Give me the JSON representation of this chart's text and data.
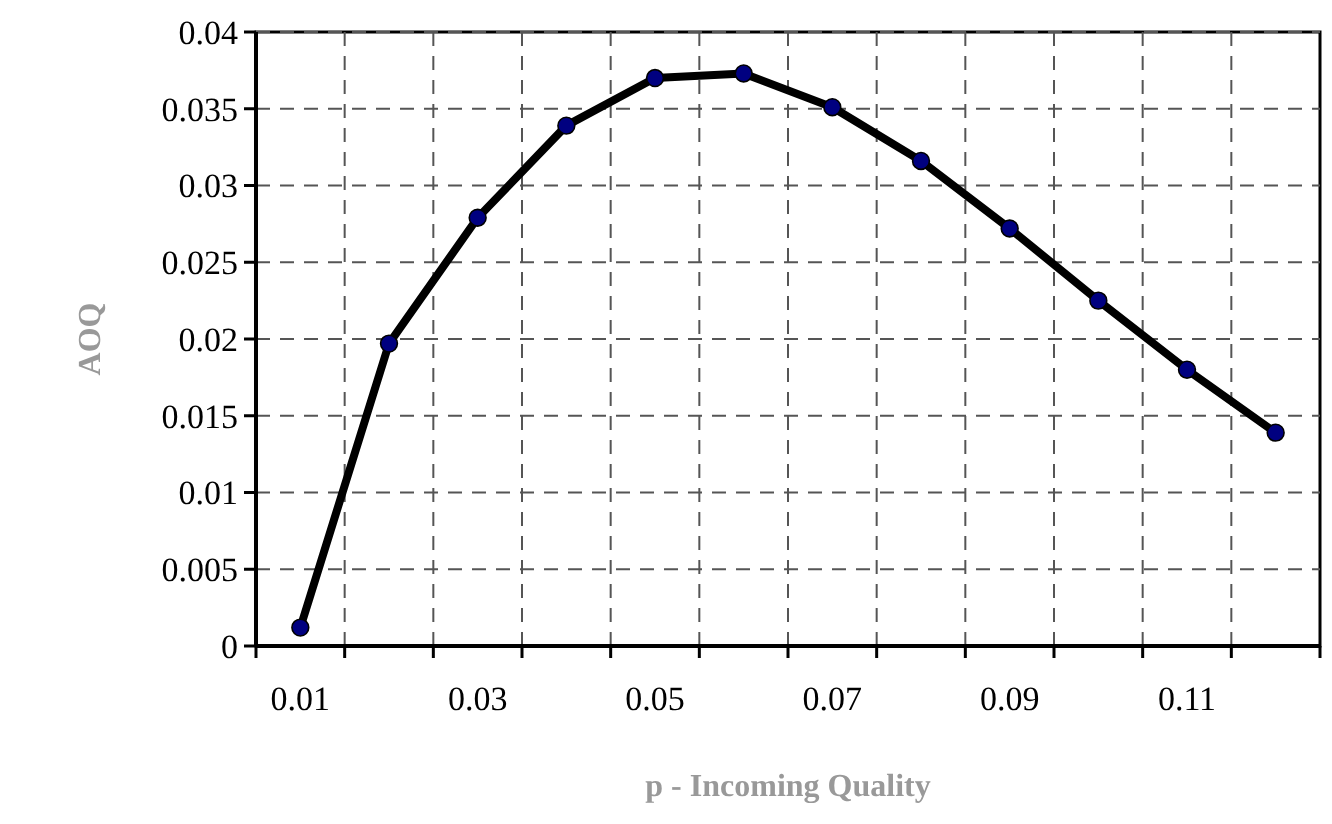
{
  "chart_data": {
    "type": "line",
    "xlabel": "p - Incoming Quality",
    "ylabel": "AOQ",
    "categories": [
      "0.01",
      null,
      "0.03",
      null,
      "0.05",
      null,
      "0.07",
      null,
      "0.09",
      null,
      "0.11",
      null
    ],
    "series": [
      {
        "color": "#000000",
        "values": [
          0.0012,
          0.0197,
          0.0279,
          0.0339,
          0.037,
          0.0373,
          0.0351,
          0.0316,
          0.0272,
          0.0225,
          0.018,
          0.0139
        ]
      }
    ],
    "ylim": [
      0,
      0.04
    ],
    "yticks": [
      0,
      0.005,
      0.01,
      0.015,
      0.02,
      0.025,
      0.03,
      0.035,
      0.04
    ],
    "grid": true,
    "marker": "circle",
    "line_style": "solid"
  }
}
